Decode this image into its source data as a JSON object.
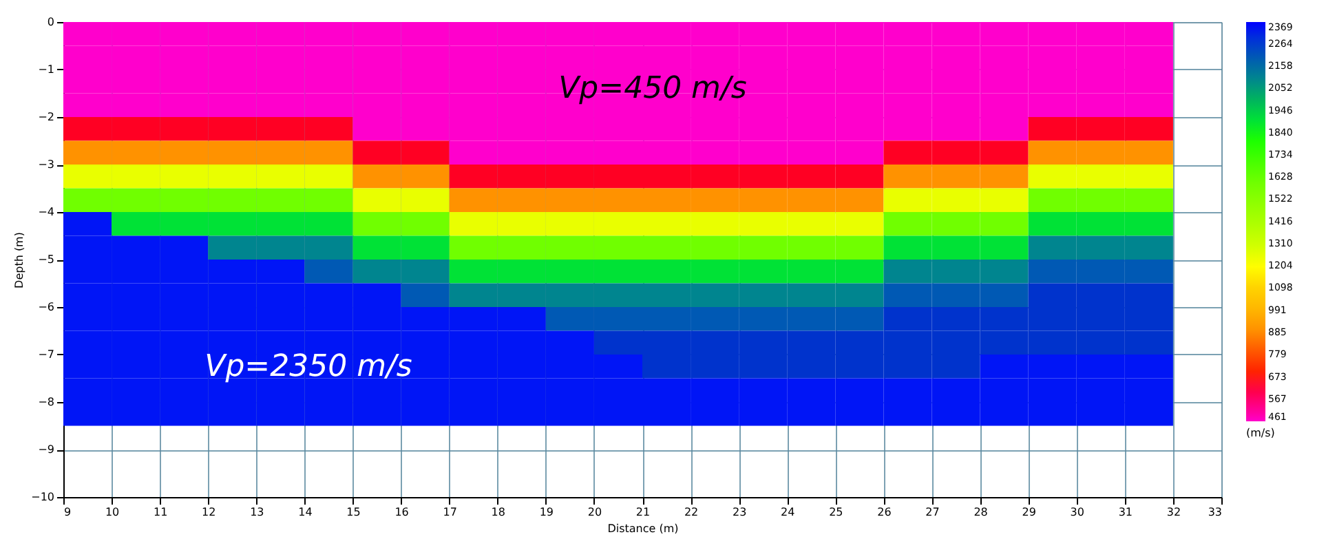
{
  "chart_data": {
    "type": "heatmap",
    "xlabel": "Distance (m)",
    "ylabel": "Depth (m)",
    "legend_title": "(m/s)",
    "x": [
      9.5,
      10.5,
      11.5,
      12.5,
      13.5,
      14.5,
      15.5,
      16.5,
      17.5,
      18.5,
      19.5,
      20.5,
      21.5,
      22.5,
      23.5,
      24.5,
      25.5,
      26.5,
      27.5,
      28.5,
      29.5,
      30.5,
      31.5
    ],
    "y": [
      -0.25,
      -0.75,
      -1.25,
      -1.75,
      -2.25,
      -2.75,
      -3.25,
      -3.75,
      -4.25,
      -4.75,
      -5.25,
      -5.75,
      -6.25,
      -6.75,
      -7.25,
      -7.75,
      -8.25
    ],
    "cells": [
      [
        450,
        450,
        450,
        450,
        450,
        450,
        450,
        450,
        450,
        450,
        450,
        450,
        450,
        450,
        450,
        450,
        450,
        450,
        450,
        450,
        450,
        450,
        450
      ],
      [
        450,
        450,
        450,
        450,
        450,
        450,
        450,
        450,
        450,
        450,
        450,
        450,
        450,
        450,
        450,
        450,
        450,
        450,
        450,
        450,
        450,
        450,
        450
      ],
      [
        450,
        450,
        450,
        450,
        450,
        450,
        450,
        450,
        450,
        450,
        450,
        450,
        450,
        450,
        450,
        450,
        450,
        450,
        450,
        450,
        450,
        450,
        450
      ],
      [
        450,
        450,
        450,
        450,
        450,
        450,
        450,
        450,
        450,
        450,
        450,
        450,
        450,
        450,
        450,
        450,
        450,
        450,
        450,
        450,
        450,
        450,
        450
      ],
      [
        650,
        650,
        650,
        650,
        650,
        650,
        450,
        450,
        450,
        450,
        450,
        450,
        450,
        450,
        450,
        450,
        450,
        450,
        450,
        450,
        650,
        650,
        650
      ],
      [
        900,
        900,
        900,
        900,
        900,
        900,
        650,
        650,
        450,
        450,
        450,
        450,
        450,
        450,
        450,
        450,
        450,
        650,
        650,
        650,
        900,
        900,
        900
      ],
      [
        1250,
        1250,
        1250,
        1250,
        1250,
        1250,
        900,
        900,
        650,
        650,
        650,
        650,
        650,
        650,
        650,
        650,
        650,
        900,
        900,
        900,
        1250,
        1250,
        1250
      ],
      [
        1600,
        1600,
        1600,
        1600,
        1600,
        1600,
        1250,
        1250,
        900,
        900,
        900,
        900,
        900,
        900,
        900,
        900,
        900,
        1250,
        1250,
        1250,
        1600,
        1600,
        1600
      ],
      [
        2350,
        1900,
        1900,
        1900,
        1900,
        1900,
        1600,
        1600,
        1250,
        1250,
        1250,
        1250,
        1250,
        1250,
        1250,
        1250,
        1250,
        1600,
        1600,
        1600,
        1900,
        1900,
        1900
      ],
      [
        2350,
        2350,
        2350,
        2100,
        2100,
        2100,
        1900,
        1900,
        1600,
        1600,
        1600,
        1600,
        1600,
        1600,
        1600,
        1600,
        1600,
        1900,
        1900,
        1900,
        2100,
        2100,
        2100
      ],
      [
        2350,
        2350,
        2350,
        2350,
        2350,
        2200,
        2100,
        2100,
        1900,
        1900,
        1900,
        1900,
        1900,
        1900,
        1900,
        1900,
        1900,
        2100,
        2100,
        2100,
        2200,
        2200,
        2200
      ],
      [
        2350,
        2350,
        2350,
        2350,
        2350,
        2350,
        2350,
        2200,
        2100,
        2100,
        2100,
        2100,
        2100,
        2100,
        2100,
        2100,
        2100,
        2200,
        2200,
        2200,
        2264,
        2264,
        2264
      ],
      [
        2350,
        2350,
        2350,
        2350,
        2350,
        2350,
        2350,
        2350,
        2350,
        2350,
        2200,
        2200,
        2200,
        2200,
        2200,
        2200,
        2200,
        2264,
        2264,
        2264,
        2264,
        2264,
        2264
      ],
      [
        2350,
        2350,
        2350,
        2350,
        2350,
        2350,
        2350,
        2350,
        2350,
        2350,
        2350,
        2264,
        2264,
        2264,
        2264,
        2264,
        2264,
        2264,
        2264,
        2264,
        2264,
        2264,
        2264
      ],
      [
        2350,
        2350,
        2350,
        2350,
        2350,
        2350,
        2350,
        2350,
        2350,
        2350,
        2350,
        2350,
        2264,
        2264,
        2264,
        2264,
        2264,
        2264,
        2264,
        2350,
        2350,
        2350,
        2350
      ],
      [
        2350,
        2350,
        2350,
        2350,
        2350,
        2350,
        2350,
        2350,
        2350,
        2350,
        2350,
        2350,
        2350,
        2350,
        2350,
        2350,
        2350,
        2350,
        2350,
        2350,
        2350,
        2350,
        2350
      ],
      [
        2350,
        2350,
        2350,
        2350,
        2350,
        2350,
        2350,
        2350,
        2350,
        2350,
        2350,
        2350,
        2350,
        2350,
        2350,
        2350,
        2350,
        2350,
        2350,
        2350,
        2350,
        2350,
        2350
      ]
    ],
    "xlim": [
      9,
      33
    ],
    "xticks": [
      9,
      10,
      11,
      12,
      13,
      14,
      15,
      16,
      17,
      18,
      19,
      20,
      21,
      22,
      23,
      24,
      25,
      26,
      27,
      28,
      29,
      30,
      31,
      32,
      33
    ],
    "ylim": [
      -10,
      0
    ],
    "yticks": [
      0,
      -1,
      -2,
      -3,
      -4,
      -5,
      -6,
      -7,
      -8,
      -9,
      -10
    ],
    "clim": [
      461,
      2369
    ],
    "cticks": [
      2369,
      2264,
      2158,
      2052,
      1946,
      1840,
      1734,
      1628,
      1522,
      1416,
      1310,
      1204,
      1098,
      991,
      885,
      779,
      673,
      567,
      461
    ],
    "colors": [
      "#0000ff",
      "#0033cc",
      "#006699",
      "#00996b",
      "#00cc44",
      "#00ff00",
      "#33ff00",
      "#66ff00",
      "#88ff00",
      "#aaff00",
      "#ccff00",
      "#ffff00",
      "#ffd200",
      "#ffb400",
      "#ff8c00",
      "#ff4a00",
      "#ff0000",
      "#ff0066",
      "#ff00cc"
    ],
    "grid": true,
    "annotations": [
      "Vp=450 m/s",
      "Vp=2350 m/s"
    ]
  }
}
